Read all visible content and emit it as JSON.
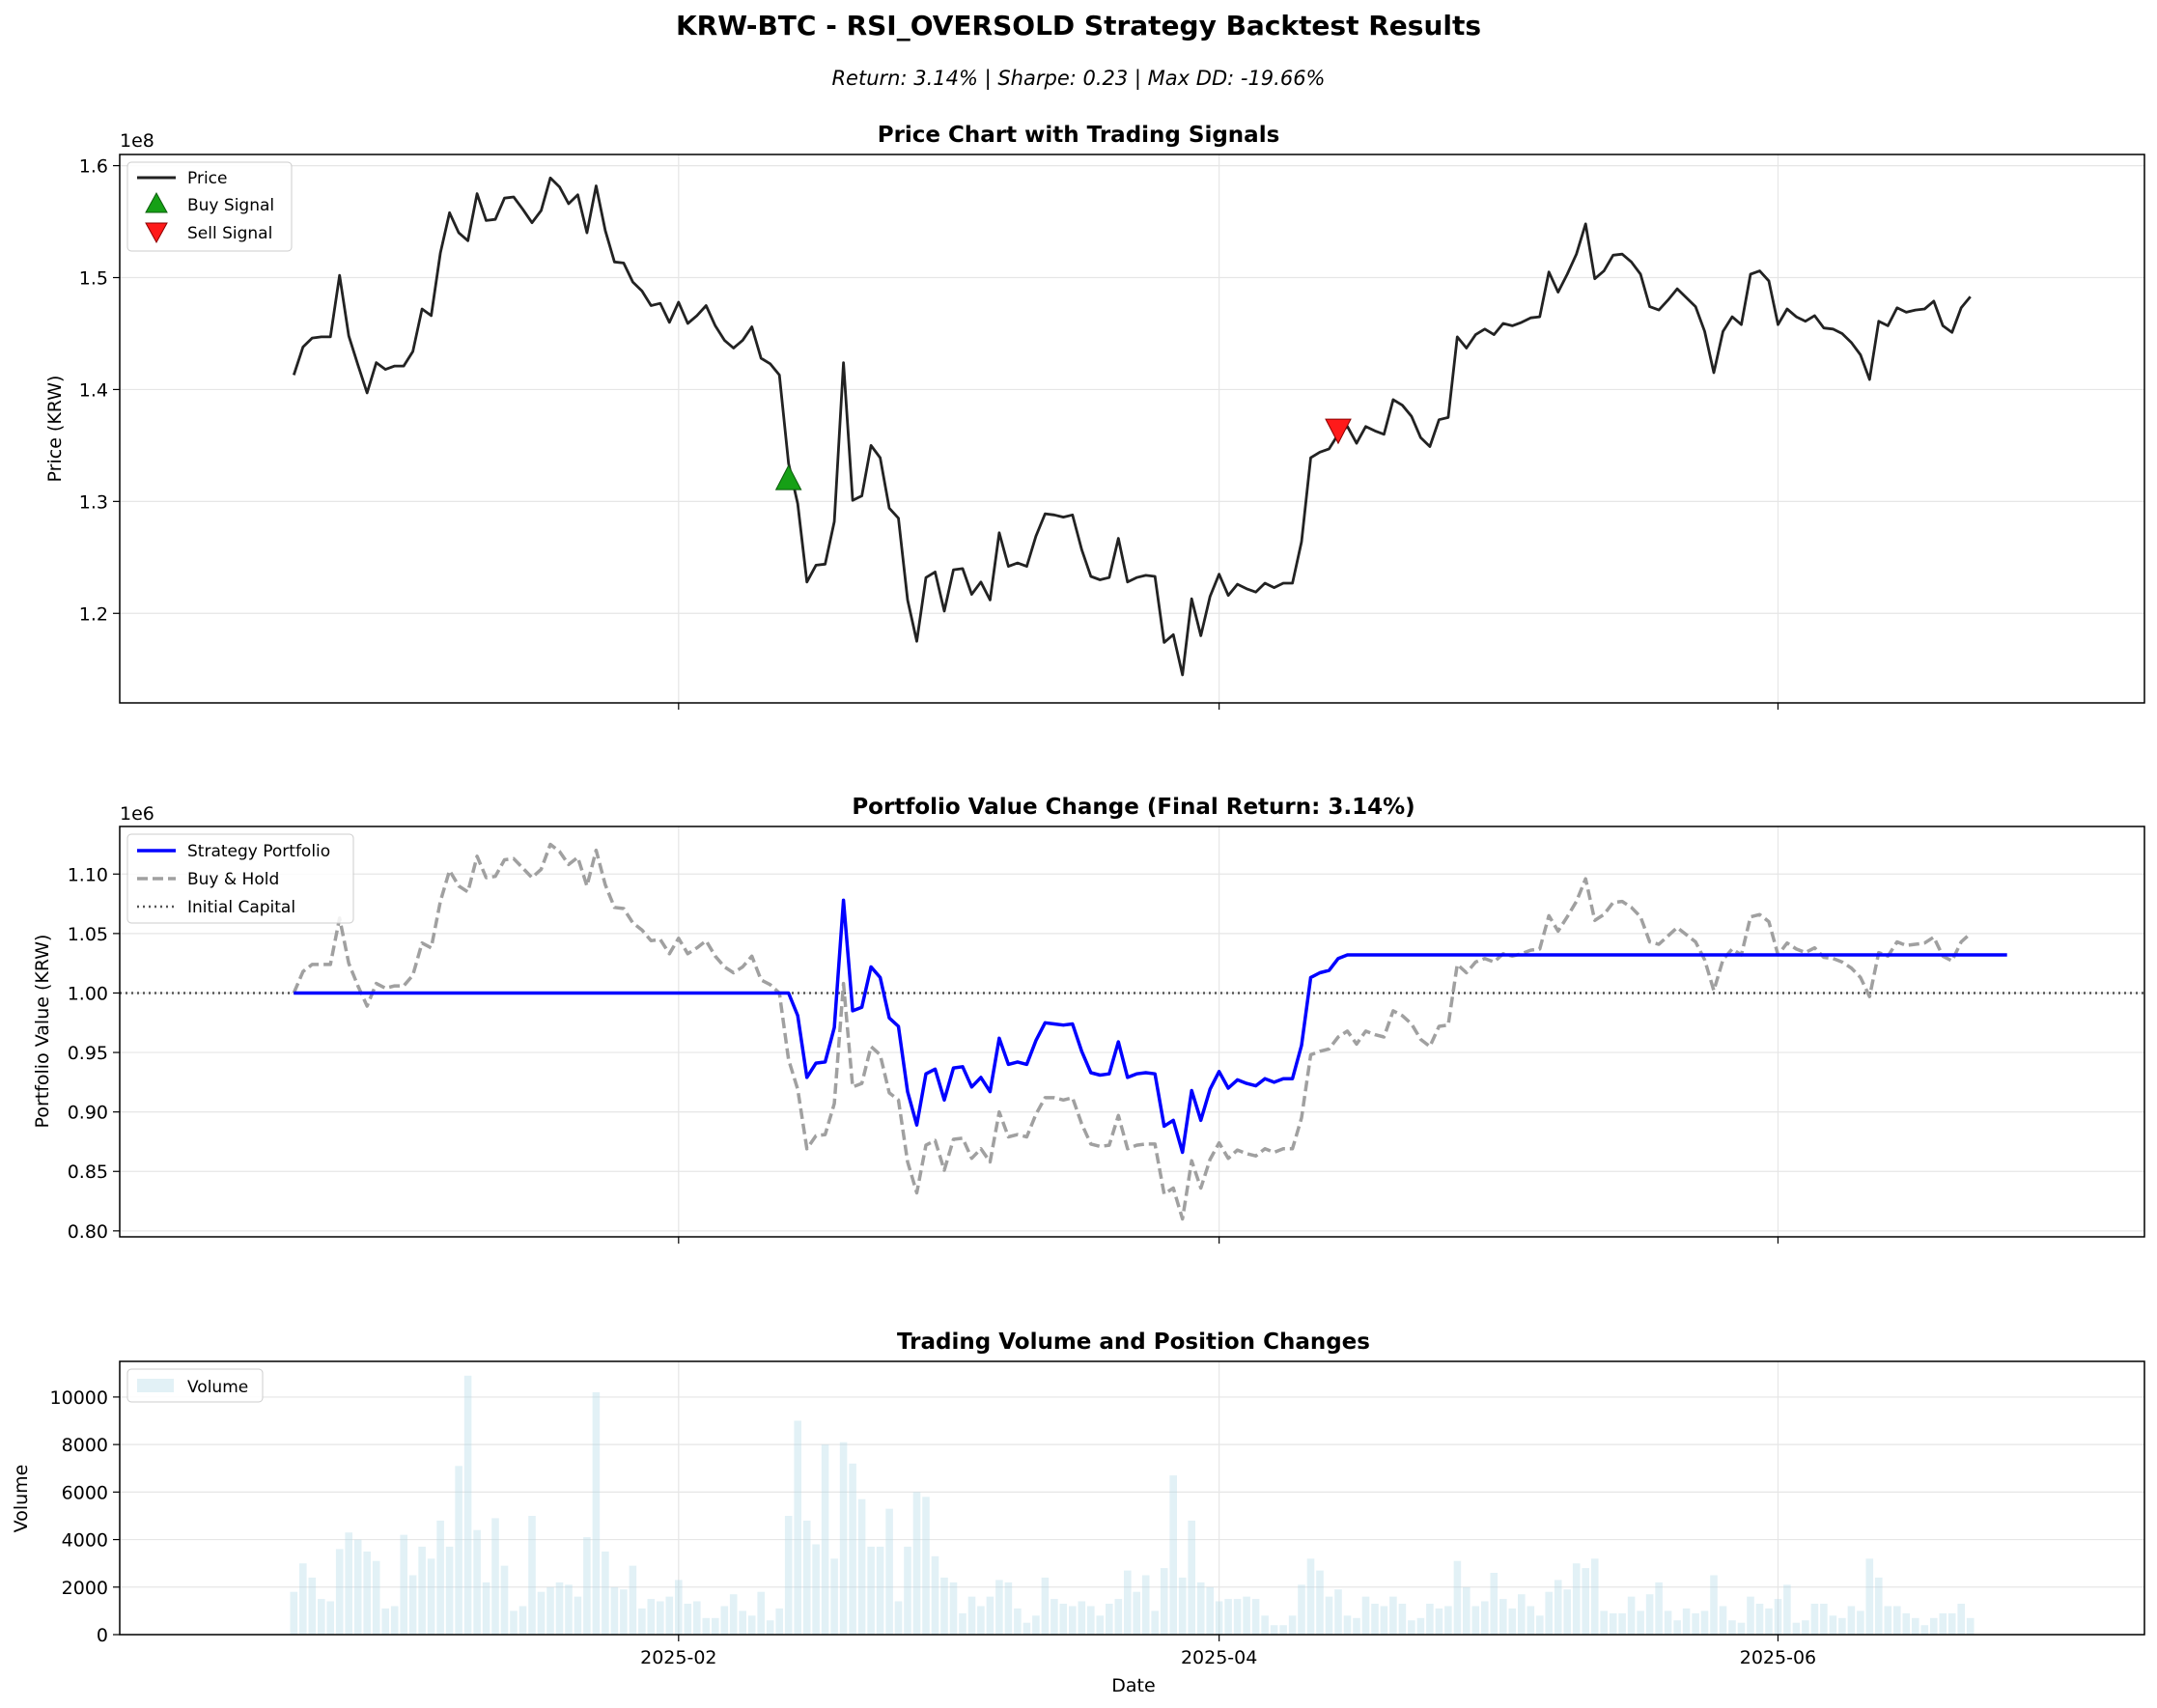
{
  "figure": {
    "title": "KRW-BTC - RSI_OVERSOLD Strategy Backtest Results",
    "subtitle": "Return: 3.14% | Sharpe: 0.23 | Max DD: -19.66%"
  },
  "colors": {
    "price": "#222222",
    "buy": "#16a016",
    "sell": "#ff1a1a",
    "strategy": "#0000ff",
    "buyhold": "#a0a0a0",
    "initial": "#555555",
    "volume": "#add8e6",
    "grid": "#e6e6e6"
  },
  "chart_data": [
    {
      "type": "line",
      "title": "Price Chart with Trading Signals",
      "ylabel": "Price (KRW)",
      "xlabel": "",
      "y_offset_text": "1e8",
      "ylim": [
        1.12,
        1.61
      ],
      "yticks": [
        1.2,
        1.3,
        1.4,
        1.5,
        1.6
      ],
      "ytick_labels": [
        "1.2",
        "1.3",
        "1.4",
        "1.5",
        "1.6"
      ],
      "xticks": [
        "2025-02-01",
        "2025-04-01",
        "2025-06-01"
      ],
      "xtick_labels": [
        "2025-02",
        "2025-04",
        "2025-06"
      ],
      "x_start": "2024-12-21",
      "grid": true,
      "legend_position": "top-left",
      "series": [
        {
          "name": "Price",
          "values": [
            1.413,
            1.438,
            1.446,
            1.447,
            1.447,
            1.502,
            1.448,
            1.422,
            1.397,
            1.424,
            1.418,
            1.421,
            1.421,
            1.434,
            1.472,
            1.466,
            1.522,
            1.558,
            1.54,
            1.533,
            1.575,
            1.551,
            1.552,
            1.571,
            1.572,
            1.561,
            1.549,
            1.56,
            1.589,
            1.581,
            1.566,
            1.574,
            1.54,
            1.582,
            1.542,
            1.514,
            1.513,
            1.496,
            1.488,
            1.475,
            1.477,
            1.46,
            1.478,
            1.459,
            1.466,
            1.475,
            1.457,
            1.444,
            1.437,
            1.444,
            1.456,
            1.428,
            1.423,
            1.413,
            1.334,
            1.298,
            1.228,
            1.243,
            1.244,
            1.282,
            1.424,
            1.301,
            1.305,
            1.35,
            1.339,
            1.294,
            1.285,
            1.212,
            1.175,
            1.232,
            1.237,
            1.202,
            1.239,
            1.24,
            1.217,
            1.228,
            1.212,
            1.272,
            1.242,
            1.245,
            1.242,
            1.269,
            1.289,
            1.288,
            1.286,
            1.288,
            1.257,
            1.233,
            1.23,
            1.232,
            1.267,
            1.228,
            1.232,
            1.234,
            1.233,
            1.174,
            1.181,
            1.145,
            1.213,
            1.18,
            1.215,
            1.235,
            1.216,
            1.226,
            1.222,
            1.219,
            1.227,
            1.223,
            1.227,
            1.227,
            1.264,
            1.339,
            1.344,
            1.347,
            1.36,
            1.367,
            1.352,
            1.367,
            1.363,
            1.36,
            1.391,
            1.386,
            1.376,
            1.357,
            1.349,
            1.373,
            1.375,
            1.447,
            1.437,
            1.449,
            1.454,
            1.449,
            1.459,
            1.457,
            1.46,
            1.464,
            1.465,
            1.505,
            1.487,
            1.503,
            1.521,
            1.548,
            1.499,
            1.506,
            1.52,
            1.521,
            1.514,
            1.503,
            1.474,
            1.471,
            1.48,
            1.49,
            1.482,
            1.474,
            1.452,
            1.415,
            1.452,
            1.465,
            1.458,
            1.503,
            1.506,
            1.497,
            1.458,
            1.472,
            1.465,
            1.461,
            1.466,
            1.455,
            1.454,
            1.45,
            1.442,
            1.431,
            1.409,
            1.461,
            1.457,
            1.473,
            1.469,
            1.471,
            1.472,
            1.479,
            1.457,
            1.451,
            1.473,
            1.483
          ]
        }
      ],
      "signals": [
        {
          "name": "Buy Signal",
          "index": 54,
          "value": 1.32
        },
        {
          "name": "Sell Signal",
          "index": 114,
          "value": 1.364
        }
      ]
    },
    {
      "type": "line",
      "title": "Portfolio Value Change (Final Return: 3.14%)",
      "ylabel": "Portfolio Value (KRW)",
      "xlabel": "",
      "y_offset_text": "1e6",
      "ylim": [
        0.795,
        1.14
      ],
      "yticks": [
        0.8,
        0.85,
        0.9,
        0.95,
        1.0,
        1.05,
        1.1
      ],
      "ytick_labels": [
        "0.80",
        "0.85",
        "0.90",
        "0.95",
        "1.00",
        "1.05",
        "1.10"
      ],
      "xticks": [
        "2025-02-01",
        "2025-04-01",
        "2025-06-01"
      ],
      "xtick_labels": [
        "2025-02",
        "2025-04",
        "2025-06"
      ],
      "grid": true,
      "legend_position": "top-left",
      "series": [
        {
          "name": "Strategy Portfolio",
          "values": [
            1.0,
            1.0,
            1.0,
            1.0,
            1.0,
            1.0,
            1.0,
            1.0,
            1.0,
            1.0,
            1.0,
            1.0,
            1.0,
            1.0,
            1.0,
            1.0,
            1.0,
            1.0,
            1.0,
            1.0,
            1.0,
            1.0,
            1.0,
            1.0,
            1.0,
            1.0,
            1.0,
            1.0,
            1.0,
            1.0,
            1.0,
            1.0,
            1.0,
            1.0,
            1.0,
            1.0,
            1.0,
            1.0,
            1.0,
            1.0,
            1.0,
            1.0,
            1.0,
            1.0,
            1.0,
            1.0,
            1.0,
            1.0,
            1.0,
            1.0,
            1.0,
            1.0,
            1.0,
            1.0,
            1.0,
            0.981,
            0.929,
            0.941,
            0.942,
            0.971,
            1.078,
            0.985,
            0.988,
            1.022,
            1.013,
            0.979,
            0.972,
            0.917,
            0.889,
            0.932,
            0.936,
            0.91,
            0.937,
            0.938,
            0.921,
            0.929,
            0.917,
            0.962,
            0.94,
            0.942,
            0.94,
            0.96,
            0.975,
            0.974,
            0.973,
            0.974,
            0.951,
            0.933,
            0.931,
            0.932,
            0.959,
            0.929,
            0.932,
            0.933,
            0.932,
            0.888,
            0.893,
            0.866,
            0.918,
            0.893,
            0.919,
            0.934,
            0.92,
            0.927,
            0.924,
            0.922,
            0.928,
            0.925,
            0.928,
            0.928,
            0.956,
            1.013,
            1.017,
            1.019,
            1.029,
            1.032,
            1.032,
            1.032,
            1.032,
            1.032,
            1.032,
            1.032,
            1.032,
            1.032,
            1.032,
            1.032,
            1.032,
            1.032,
            1.032,
            1.032,
            1.032,
            1.032,
            1.032,
            1.032,
            1.032,
            1.032,
            1.032,
            1.032,
            1.032,
            1.032,
            1.032,
            1.032,
            1.032,
            1.032,
            1.032,
            1.032,
            1.032,
            1.032,
            1.032,
            1.032,
            1.032,
            1.032,
            1.032,
            1.032,
            1.032,
            1.032,
            1.032,
            1.032,
            1.032,
            1.032,
            1.032,
            1.032,
            1.032,
            1.032,
            1.032,
            1.032,
            1.032,
            1.032,
            1.032,
            1.032,
            1.032,
            1.032,
            1.032,
            1.032,
            1.032,
            1.032,
            1.032,
            1.032,
            1.032,
            1.032,
            1.032,
            1.032,
            1.032,
            1.032,
            1.032,
            1.032,
            1.032,
            1.032
          ]
        },
        {
          "name": "Buy & Hold",
          "values": [
            1.0,
            1.018,
            1.024,
            1.024,
            1.024,
            1.063,
            1.025,
            1.006,
            0.989,
            1.008,
            1.004,
            1.006,
            1.006,
            1.015,
            1.042,
            1.038,
            1.077,
            1.103,
            1.09,
            1.085,
            1.115,
            1.097,
            1.098,
            1.112,
            1.113,
            1.105,
            1.097,
            1.104,
            1.125,
            1.119,
            1.108,
            1.114,
            1.09,
            1.12,
            1.091,
            1.072,
            1.071,
            1.059,
            1.053,
            1.044,
            1.045,
            1.033,
            1.046,
            1.033,
            1.038,
            1.044,
            1.031,
            1.022,
            1.017,
            1.022,
            1.031,
            1.011,
            1.007,
            1.0,
            0.944,
            0.919,
            0.869,
            0.88,
            0.881,
            0.907,
            1.008,
            0.921,
            0.924,
            0.955,
            0.948,
            0.916,
            0.91,
            0.858,
            0.832,
            0.872,
            0.876,
            0.851,
            0.877,
            0.878,
            0.861,
            0.869,
            0.858,
            0.9,
            0.879,
            0.881,
            0.879,
            0.898,
            0.912,
            0.912,
            0.91,
            0.912,
            0.89,
            0.873,
            0.871,
            0.872,
            0.897,
            0.869,
            0.872,
            0.873,
            0.873,
            0.831,
            0.836,
            0.81,
            0.859,
            0.836,
            0.86,
            0.874,
            0.861,
            0.868,
            0.865,
            0.863,
            0.869,
            0.866,
            0.869,
            0.869,
            0.895,
            0.948,
            0.951,
            0.953,
            0.963,
            0.968,
            0.957,
            0.968,
            0.965,
            0.963,
            0.985,
            0.981,
            0.974,
            0.961,
            0.955,
            0.972,
            0.973,
            1.024,
            1.017,
            1.026,
            1.029,
            1.026,
            1.033,
            1.031,
            1.033,
            1.036,
            1.037,
            1.065,
            1.052,
            1.064,
            1.077,
            1.096,
            1.061,
            1.066,
            1.076,
            1.077,
            1.072,
            1.064,
            1.043,
            1.041,
            1.048,
            1.055,
            1.049,
            1.043,
            1.028,
            1.002,
            1.028,
            1.037,
            1.032,
            1.064,
            1.066,
            1.06,
            1.032,
            1.042,
            1.037,
            1.034,
            1.038,
            1.03,
            1.029,
            1.026,
            1.021,
            1.013,
            0.997,
            1.034,
            1.031,
            1.043,
            1.04,
            1.041,
            1.042,
            1.047,
            1.031,
            1.027,
            1.043,
            1.05
          ]
        },
        {
          "name": "Initial Capital",
          "values": [
            1.0,
            1.0
          ]
        }
      ]
    },
    {
      "type": "bar",
      "title": "Trading Volume and Position Changes",
      "ylabel": "Volume",
      "xlabel": "Date",
      "ylim": [
        0,
        11500
      ],
      "yticks": [
        0,
        2000,
        4000,
        6000,
        8000,
        10000
      ],
      "ytick_labels": [
        "0",
        "2000",
        "4000",
        "6000",
        "8000",
        "10000"
      ],
      "xticks": [
        "2025-02-01",
        "2025-04-01",
        "2025-06-01"
      ],
      "xtick_labels": [
        "2025-02",
        "2025-04",
        "2025-06"
      ],
      "grid": true,
      "legend_position": "top-left",
      "series": [
        {
          "name": "Volume",
          "values": [
            1800,
            3000,
            2400,
            1500,
            1400,
            3600,
            4300,
            4000,
            3500,
            3100,
            1100,
            1200,
            4200,
            2500,
            3700,
            3200,
            4800,
            3700,
            7100,
            10900,
            4400,
            2200,
            4900,
            2900,
            1000,
            1200,
            5000,
            1800,
            2000,
            2200,
            2100,
            1600,
            4100,
            10200,
            3500,
            2000,
            1900,
            2900,
            1100,
            1500,
            1400,
            1600,
            2300,
            1300,
            1400,
            700,
            700,
            1200,
            1700,
            1000,
            800,
            1800,
            600,
            1100,
            5000,
            9000,
            4800,
            3800,
            8000,
            3200,
            8100,
            7200,
            5700,
            3700,
            3700,
            5300,
            1400,
            3700,
            6000,
            5800,
            3300,
            2400,
            2200,
            900,
            1600,
            1200,
            1600,
            2300,
            2200,
            1100,
            500,
            800,
            2400,
            1500,
            1300,
            1200,
            1400,
            1200,
            800,
            1300,
            1500,
            2700,
            1800,
            2500,
            1000,
            2800,
            6700,
            2400,
            4800,
            2200,
            2000,
            1400,
            1500,
            1500,
            1600,
            1500,
            800,
            400,
            400,
            800,
            2100,
            3200,
            2700,
            1600,
            1900,
            800,
            700,
            1600,
            1300,
            1200,
            1600,
            1300,
            600,
            700,
            1300,
            1100,
            1200,
            3100,
            2000,
            1200,
            1400,
            2600,
            1500,
            1100,
            1700,
            1200,
            800,
            1800,
            2300,
            1900,
            3000,
            2800,
            3200,
            1000,
            900,
            900,
            1600,
            1000,
            1700,
            2200,
            1000,
            600,
            1100,
            900,
            1000,
            2500,
            1200,
            600,
            500,
            1600,
            1300,
            1100,
            1500,
            2100,
            500,
            600,
            1300,
            1300,
            800,
            700,
            1200,
            1000,
            3200,
            2400,
            1200,
            1200,
            900,
            700,
            400,
            700,
            900,
            900,
            1300,
            700
          ]
        }
      ]
    }
  ]
}
